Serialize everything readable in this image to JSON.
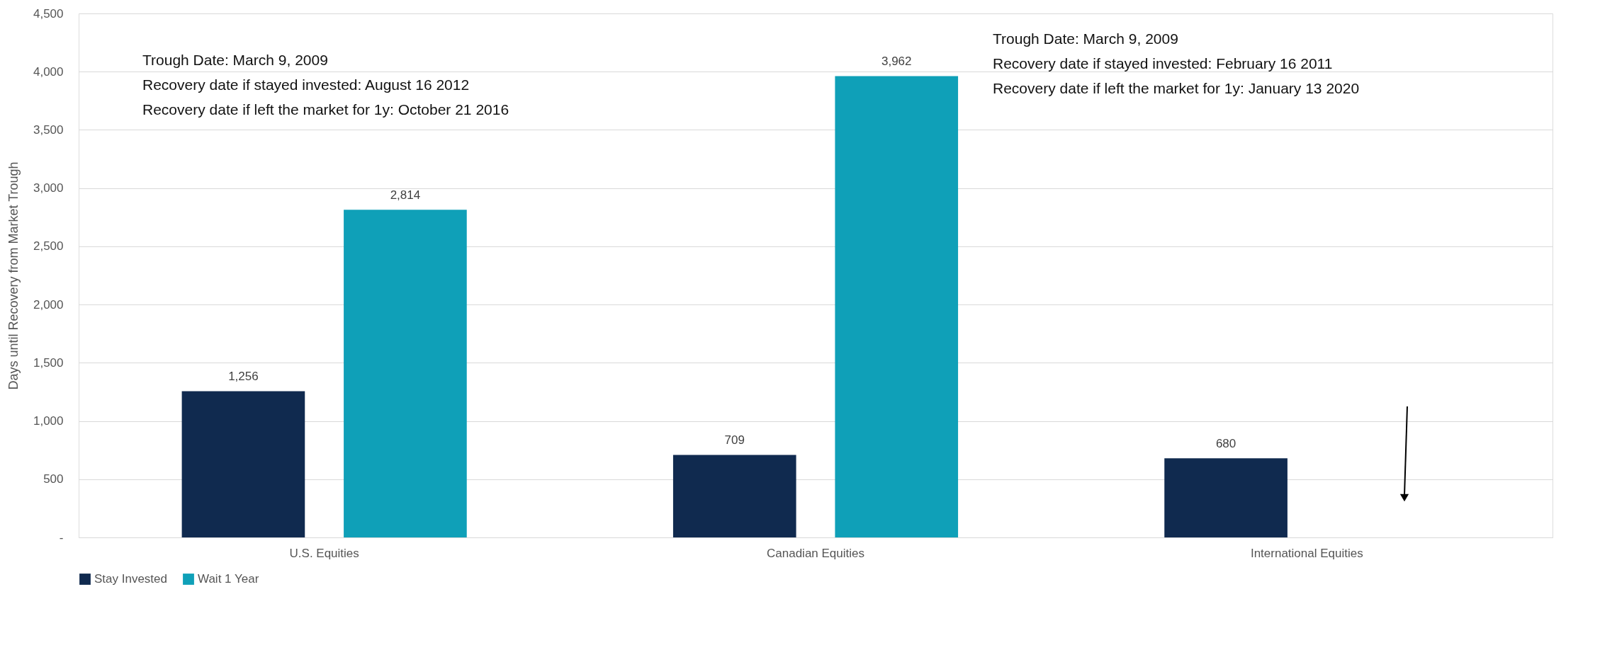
{
  "chart_data": {
    "type": "bar",
    "ylabel": "Days until Recovery from Market Trough",
    "categories": [
      "U.S. Equities",
      "Canadian Equities",
      "International Equities"
    ],
    "series": [
      {
        "name": "Stay Invested",
        "color": "#102a4f",
        "values": [
          1256,
          709,
          680
        ],
        "value_labels": [
          "1,256",
          "709",
          "680"
        ]
      },
      {
        "name": "Wait 1 Year",
        "color": "#0fa0b8",
        "values": [
          2814,
          3962,
          null
        ],
        "value_labels": [
          "2,814",
          "3,962",
          null
        ]
      }
    ],
    "ylim": [
      0,
      4500
    ],
    "yticks": [
      {
        "value": 0,
        "label": "-"
      },
      500,
      {
        "value": 1000,
        "label": "1,000"
      },
      {
        "value": 1500,
        "label": "1,500"
      },
      {
        "value": 2000,
        "label": "2,000"
      },
      {
        "value": 2500,
        "label": "2,500"
      },
      {
        "value": 3000,
        "label": "3,000"
      },
      {
        "value": 3500,
        "label": "3,500"
      },
      {
        "value": 4000,
        "label": "4,000"
      },
      {
        "value": 4500,
        "label": "4,500"
      }
    ],
    "grid": "y",
    "legend": "bottom",
    "annotations": [
      "Trough Date: March 9, 2009",
      "Recovery date if stayed invested: August 16 2012",
      "Recovery date if left the market for 1y: October 21 2016",
      "Trough Date: March 9, 2009",
      "Recovery date if stayed invested: February 16 2011",
      "Recovery date if left the market for 1y: January 13 2020"
    ]
  }
}
